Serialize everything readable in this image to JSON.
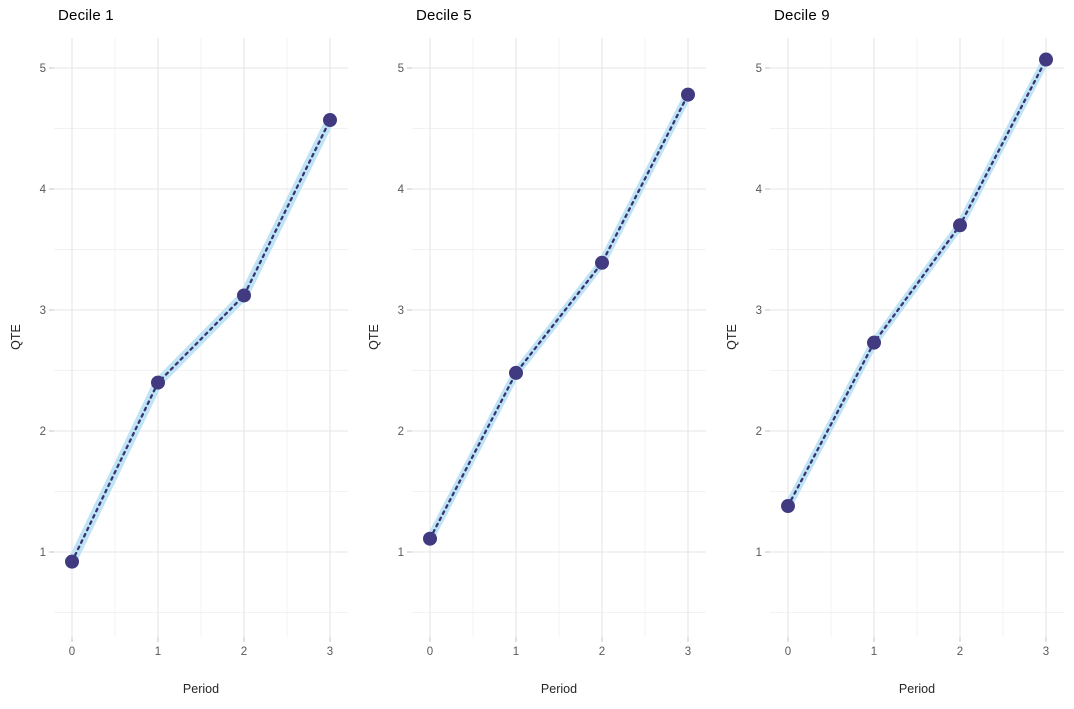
{
  "page": {
    "background": "#ffffff"
  },
  "chart_data": [
    {
      "type": "line",
      "title": "Decile 1",
      "xlabel": "Period",
      "ylabel": "QTE",
      "x": [
        0,
        1,
        2,
        3
      ],
      "values": [
        0.92,
        2.4,
        3.12,
        4.57
      ],
      "band_halfwidth": 0.038,
      "x_ticks": [
        0,
        1,
        2,
        3
      ],
      "y_ticks": [
        1,
        2,
        3,
        4,
        5
      ],
      "x_minor": [
        0.5,
        1.5,
        2.5
      ],
      "y_minor": [
        0.5,
        1.5,
        2.5,
        3.5,
        4.5
      ],
      "xlim": [
        -0.21,
        3.21
      ],
      "ylim": [
        0.3,
        5.35
      ],
      "grid": true,
      "legend": "none",
      "line_style": "dotted",
      "marker": "circle",
      "band_name": "confidence-ribbon"
    },
    {
      "type": "line",
      "title": "Decile 5",
      "xlabel": "Period",
      "ylabel": "QTE",
      "x": [
        0,
        1,
        2,
        3
      ],
      "values": [
        1.11,
        2.48,
        3.39,
        4.78
      ],
      "band_halfwidth": 0.033,
      "x_ticks": [
        0,
        1,
        2,
        3
      ],
      "y_ticks": [
        1,
        2,
        3,
        4,
        5
      ],
      "x_minor": [
        0.5,
        1.5,
        2.5
      ],
      "y_minor": [
        0.5,
        1.5,
        2.5,
        3.5,
        4.5
      ],
      "xlim": [
        -0.21,
        3.21
      ],
      "ylim": [
        0.3,
        5.35
      ],
      "grid": true,
      "legend": "none",
      "line_style": "dotted",
      "marker": "circle",
      "band_name": "confidence-ribbon"
    },
    {
      "type": "line",
      "title": "Decile 9",
      "xlabel": "Period",
      "ylabel": "QTE",
      "x": [
        0,
        1,
        2,
        3
      ],
      "values": [
        1.38,
        2.73,
        3.7,
        5.07
      ],
      "band_halfwidth": 0.033,
      "x_ticks": [
        0,
        1,
        2,
        3
      ],
      "y_ticks": [
        1,
        2,
        3,
        4,
        5
      ],
      "x_minor": [
        0.5,
        1.5,
        2.5
      ],
      "y_minor": [
        0.5,
        1.5,
        2.5,
        3.5,
        4.5
      ],
      "xlim": [
        -0.21,
        3.21
      ],
      "ylim": [
        0.3,
        5.35
      ],
      "grid": true,
      "legend": "none",
      "line_style": "dotted",
      "marker": "circle",
      "band_name": "confidence-ribbon"
    }
  ],
  "style": {
    "point_color": "#423a80",
    "line_color": "#3a3472",
    "band_color": "#bfe4f5",
    "grid_major_color": "#e5e5e5",
    "grid_minor_color": "#f2f2f2",
    "axis_tick_color": "#c9c9c9",
    "tick_label_color": "#595959",
    "axis_label_color": "#262626",
    "title_color": "#000000"
  }
}
